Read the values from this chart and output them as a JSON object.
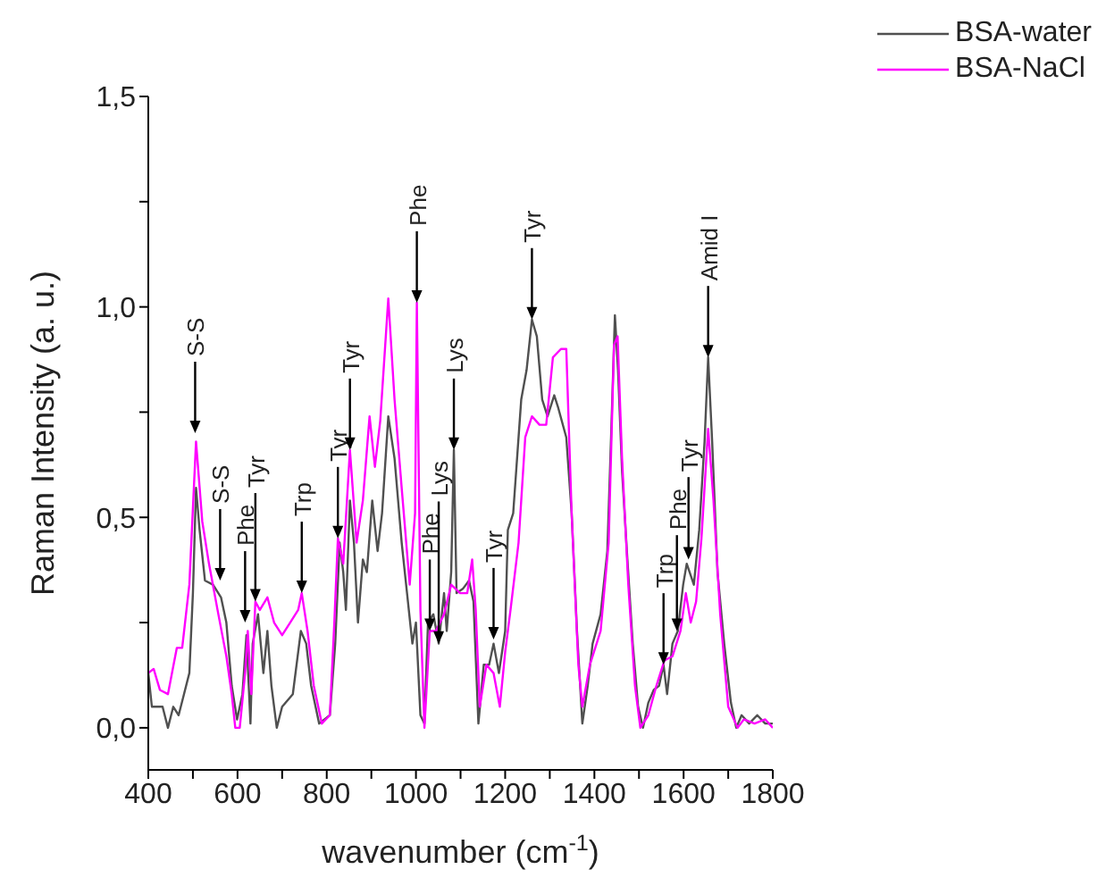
{
  "chart_data": {
    "type": "line",
    "xlabel": "wavenumber (cm$^{-1}$)",
    "ylabel": "Raman Intensity (a. u.)",
    "xlim": [
      400,
      1800
    ],
    "xticks": [
      400,
      {
        "value": 500,
        "label": null
      },
      600,
      {
        "value": 700,
        "label": null
      },
      800,
      {
        "value": 900,
        "label": null
      },
      1000,
      {
        "value": 1100,
        "label": null
      },
      1200,
      {
        "value": 1300,
        "label": null
      },
      1400,
      {
        "value": 1500,
        "label": null
      },
      1600,
      {
        "value": 1700,
        "label": null
      },
      1800
    ],
    "ylim": [
      -0.1,
      1.5
    ],
    "yticks": [
      {
        "value": 0,
        "label": "0,0"
      },
      {
        "value": 0.25,
        "label": null
      },
      {
        "value": 0.5,
        "label": "0,5"
      },
      {
        "value": 0.75,
        "label": null
      },
      {
        "value": 1.0,
        "label": "1,0"
      },
      {
        "value": 1.25,
        "label": null
      },
      {
        "value": 1.5,
        "label": "1,5"
      }
    ],
    "grid": false,
    "legend": "top right",
    "series": [
      {
        "name": "BSA-water",
        "color": "#505050",
        "x": [
          400,
          408,
          432,
          444,
          456,
          468,
          480,
          492,
          500,
          507,
          515,
          527,
          545,
          563,
          575,
          587,
          599,
          611,
          620,
          629,
          634,
          646,
          658,
          667,
          676,
          688,
          700,
          724,
          742,
          754,
          765,
          783,
          807,
          819,
          829,
          837,
          843,
          852,
          861,
          870,
          881,
          890,
          902,
          914,
          924,
          938,
          952,
          968,
          980,
          992,
          1000,
          1010,
          1019,
          1027,
          1039,
          1051,
          1063,
          1069,
          1079,
          1085,
          1091,
          1105,
          1119,
          1129,
          1140,
          1152,
          1164,
          1174,
          1186,
          1200,
          1206,
          1218,
          1236,
          1248,
          1260,
          1271,
          1283,
          1295,
          1310,
          1319,
          1337,
          1349,
          1361,
          1373,
          1385,
          1396,
          1414,
          1429,
          1438,
          1446,
          1453,
          1462,
          1474,
          1486,
          1498,
          1509,
          1521,
          1533,
          1545,
          1555,
          1563,
          1575,
          1587,
          1599,
          1607,
          1623,
          1635,
          1647,
          1655,
          1664,
          1676,
          1691,
          1706,
          1718,
          1730,
          1747,
          1765,
          1783,
          1800
        ],
        "values": [
          0.13,
          0.05,
          0.05,
          0.0,
          0.05,
          0.03,
          0.08,
          0.13,
          0.32,
          0.57,
          0.47,
          0.35,
          0.34,
          0.31,
          0.25,
          0.1,
          0.02,
          0.08,
          0.22,
          0.01,
          0.2,
          0.27,
          0.13,
          0.23,
          0.1,
          0.0,
          0.05,
          0.08,
          0.23,
          0.2,
          0.1,
          0.01,
          0.03,
          0.2,
          0.44,
          0.37,
          0.28,
          0.54,
          0.44,
          0.25,
          0.4,
          0.37,
          0.54,
          0.42,
          0.51,
          0.74,
          0.64,
          0.44,
          0.32,
          0.2,
          0.25,
          0.03,
          0.01,
          0.25,
          0.27,
          0.2,
          0.32,
          0.23,
          0.37,
          0.66,
          0.32,
          0.33,
          0.35,
          0.3,
          0.01,
          0.15,
          0.15,
          0.2,
          0.13,
          0.23,
          0.47,
          0.51,
          0.78,
          0.85,
          0.97,
          0.93,
          0.78,
          0.74,
          0.79,
          0.76,
          0.69,
          0.51,
          0.23,
          0.01,
          0.1,
          0.2,
          0.27,
          0.42,
          0.71,
          0.98,
          0.85,
          0.61,
          0.4,
          0.2,
          0.05,
          0.0,
          0.06,
          0.09,
          0.1,
          0.15,
          0.08,
          0.2,
          0.23,
          0.34,
          0.39,
          0.34,
          0.47,
          0.68,
          0.88,
          0.68,
          0.37,
          0.2,
          0.06,
          0.0,
          0.03,
          0.01,
          0.03,
          0.01,
          0.01
        ]
      },
      {
        "name": "BSA-NaCl",
        "color": "#ff00ff",
        "x": [
          400,
          412,
          426,
          444,
          464,
          476,
          492,
          507,
          521,
          536,
          557,
          575,
          587,
          595,
          605,
          617,
          623,
          631,
          640,
          650,
          667,
          682,
          700,
          718,
          736,
          744,
          757,
          771,
          789,
          807,
          817,
          825,
          837,
          852,
          867,
          881,
          896,
          908,
          920,
          938,
          952,
          968,
          986,
          998,
          1002,
          1010,
          1019,
          1031,
          1045,
          1063,
          1079,
          1099,
          1115,
          1126,
          1134,
          1143,
          1158,
          1174,
          1188,
          1200,
          1212,
          1230,
          1245,
          1260,
          1277,
          1292,
          1307,
          1325,
          1337,
          1349,
          1364,
          1373,
          1390,
          1414,
          1432,
          1444,
          1452,
          1462,
          1476,
          1491,
          1503,
          1521,
          1539,
          1557,
          1575,
          1593,
          1605,
          1616,
          1628,
          1640,
          1655,
          1667,
          1682,
          1700,
          1721,
          1735,
          1759,
          1783,
          1800
        ],
        "values": [
          0.13,
          0.14,
          0.09,
          0.08,
          0.19,
          0.19,
          0.34,
          0.68,
          0.49,
          0.39,
          0.27,
          0.17,
          0.08,
          0.0,
          0.0,
          0.13,
          0.23,
          0.08,
          0.3,
          0.28,
          0.31,
          0.25,
          0.22,
          0.25,
          0.28,
          0.32,
          0.23,
          0.1,
          0.01,
          0.03,
          0.25,
          0.45,
          0.39,
          0.66,
          0.44,
          0.54,
          0.74,
          0.62,
          0.73,
          1.02,
          0.78,
          0.57,
          0.34,
          0.51,
          1.01,
          0.28,
          0.0,
          0.23,
          0.23,
          0.27,
          0.34,
          0.32,
          0.32,
          0.4,
          0.28,
          0.05,
          0.15,
          0.13,
          0.05,
          0.18,
          0.28,
          0.44,
          0.69,
          0.74,
          0.72,
          0.72,
          0.88,
          0.9,
          0.9,
          0.51,
          0.15,
          0.05,
          0.15,
          0.23,
          0.44,
          0.91,
          0.93,
          0.64,
          0.34,
          0.1,
          0.0,
          0.03,
          0.1,
          0.16,
          0.17,
          0.23,
          0.32,
          0.25,
          0.3,
          0.45,
          0.71,
          0.54,
          0.27,
          0.05,
          0.0,
          0.02,
          0.01,
          0.02,
          0.0
        ]
      }
    ],
    "annotations": [
      {
        "text": "S-S",
        "x": 505,
        "y": 0.7
      },
      {
        "text": "S-S",
        "x": 561,
        "y": 0.35
      },
      {
        "text": "Phe",
        "x": 617,
        "y": 0.25
      },
      {
        "text": "Tyr",
        "x": 640,
        "y": 0.3
      },
      {
        "text": "Trp",
        "x": 744,
        "y": 0.32
      },
      {
        "text": "Tyr",
        "x": 825,
        "y": 0.45
      },
      {
        "text": "Tyr",
        "x": 852,
        "y": 0.66
      },
      {
        "text": "Phe",
        "x": 1002,
        "y": 1.01
      },
      {
        "text": "Phe",
        "x": 1031,
        "y": 0.23
      },
      {
        "text": "Lys",
        "x": 1051,
        "y": 0.2
      },
      {
        "text": "Lys",
        "x": 1085,
        "y": 0.66
      },
      {
        "text": "Tyr",
        "x": 1174,
        "y": 0.21
      },
      {
        "text": "Tyr",
        "x": 1260,
        "y": 0.97
      },
      {
        "text": "Trp",
        "x": 1555,
        "y": 0.15
      },
      {
        "text": "Phe",
        "x": 1585,
        "y": 0.23
      },
      {
        "text": "Tyr",
        "x": 1611,
        "y": 0.4
      },
      {
        "text": "Amid I",
        "x": 1655,
        "y": 0.88
      }
    ]
  }
}
